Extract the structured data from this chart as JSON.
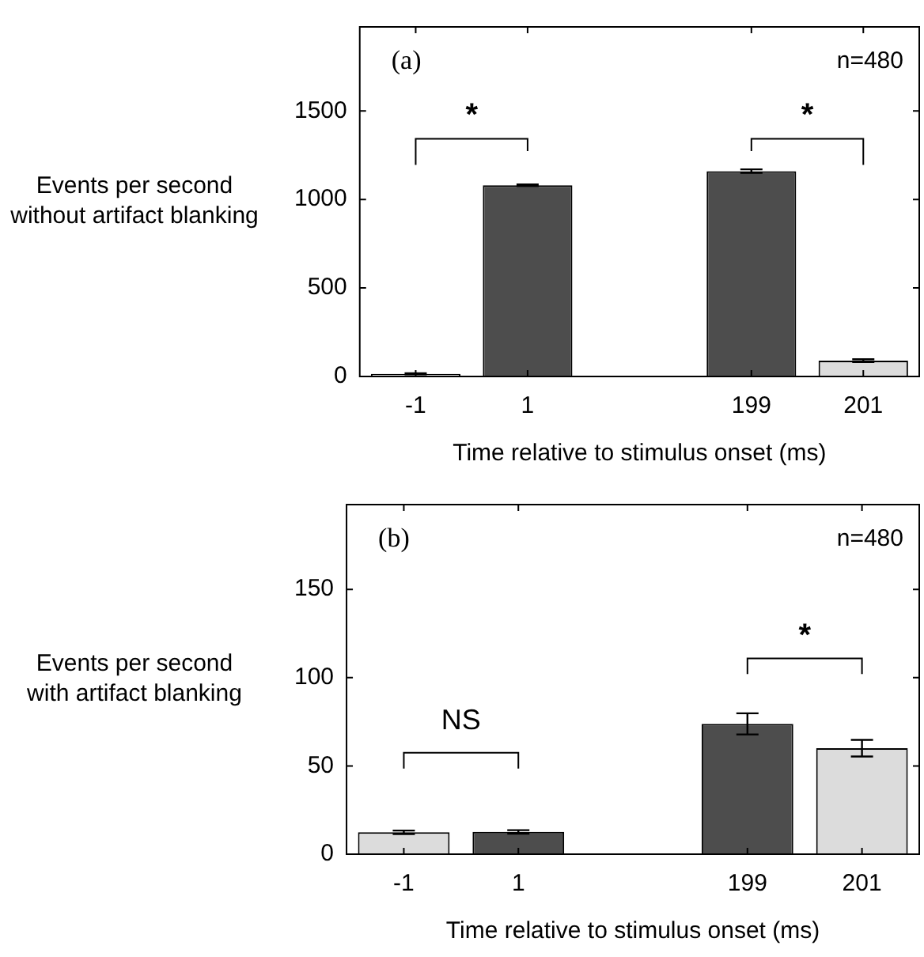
{
  "chart_data": [
    {
      "type": "bar",
      "ylabel": "Events per second\nwithout artifact blanking",
      "xlabel": "Time relative to stimulus onset (ms)",
      "categories": [
        "-1",
        "1",
        null,
        "199",
        "201"
      ],
      "values": [
        15,
        1080,
        null,
        1160,
        89
      ],
      "errors": [
        3,
        5,
        null,
        10,
        8
      ],
      "colors": [
        "#dcdcdc",
        "#4d4d4d",
        null,
        "#4d4d4d",
        "#dcdcdc"
      ],
      "ylim": [
        0,
        1975
      ],
      "yticks": [
        0,
        500,
        1000,
        1500
      ],
      "grid": false,
      "legend": false,
      "annotations": [
        "(a)",
        "n=480",
        "*",
        "*"
      ]
    },
    {
      "type": "bar",
      "ylabel": "Events per second\nwith artifact blanking",
      "xlabel": "Time relative to stimulus onset (ms)",
      "categories": [
        "-1",
        "1",
        null,
        "199",
        "201"
      ],
      "values": [
        12.4,
        12.6,
        null,
        73.8,
        60
      ],
      "errors": [
        1,
        1,
        null,
        6,
        4.7
      ],
      "colors": [
        "#dcdcdc",
        "#4d4d4d",
        null,
        "#4d4d4d",
        "#dcdcdc"
      ],
      "ylim": [
        0,
        198
      ],
      "yticks": [
        0,
        50,
        100,
        150
      ],
      "grid": false,
      "legend": false,
      "annotations": [
        "(b)",
        "n=480",
        "NS",
        "*"
      ]
    }
  ]
}
